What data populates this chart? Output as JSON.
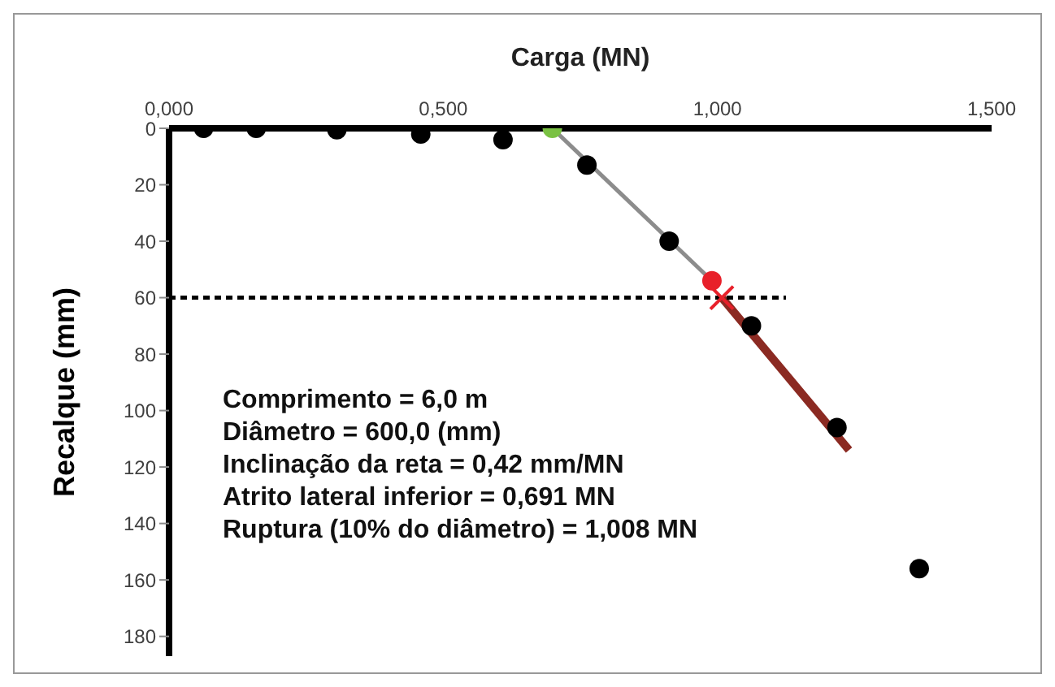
{
  "chart_data": {
    "type": "scatter",
    "xlabel": "Carga (MN)",
    "ylabel": "Recalque (mm)",
    "xlim": [
      0,
      1.5
    ],
    "xticks": [
      {
        "value": 0,
        "label": "0,000"
      },
      {
        "value": 0.5,
        "label": "0,500"
      },
      {
        "value": 1,
        "label": "1,000"
      },
      {
        "value": 1.5,
        "label": "1,500"
      }
    ],
    "ylim": [
      187,
      0
    ],
    "yticks": [
      0,
      20,
      40,
      60,
      80,
      100,
      120,
      140,
      160,
      180
    ],
    "grid": false,
    "legend": false,
    "marker": "circle",
    "series": [
      {
        "type": "line",
        "color": "#8c8c8c",
        "x": [
          0.699,
          0.99
        ],
        "values": [
          0,
          54
        ],
        "marker": "none"
      },
      {
        "type": "line",
        "color": "#8b2a22",
        "x": [
          1.008,
          1.24
        ],
        "values": [
          60,
          114
        ],
        "marker": "none"
      },
      {
        "type": "line",
        "color": "#000000",
        "x": [
          0,
          1.125
        ],
        "values": [
          60,
          60
        ],
        "marker": "none",
        "line_style": "dashed"
      },
      {
        "color": "#000000",
        "x": [
          0.063,
          0.159,
          0.306,
          0.459,
          0.609,
          0.762,
          0.912,
          1.062,
          1.218,
          1.368
        ],
        "values": [
          0,
          0,
          0.5,
          2,
          4,
          13,
          40,
          70,
          106,
          156
        ]
      },
      {
        "color": "#7ac143",
        "x": [
          0.699
        ],
        "values": [
          0
        ]
      },
      {
        "color": "#e8202a",
        "x": [
          0.99
        ],
        "values": [
          54
        ]
      },
      {
        "color": "#e8202a",
        "x": [
          1.008
        ],
        "values": [
          60
        ],
        "marker": "cross"
      }
    ],
    "annotations": [
      "Comprimento = 6,0 m",
      "Diâmetro = 600,0 (mm)",
      "Inclinação da reta = 0,42 mm/MN",
      "Atrito lateral inferior = 0,691 MN",
      "Ruptura (10% do diâmetro) = 1,008 MN"
    ]
  }
}
